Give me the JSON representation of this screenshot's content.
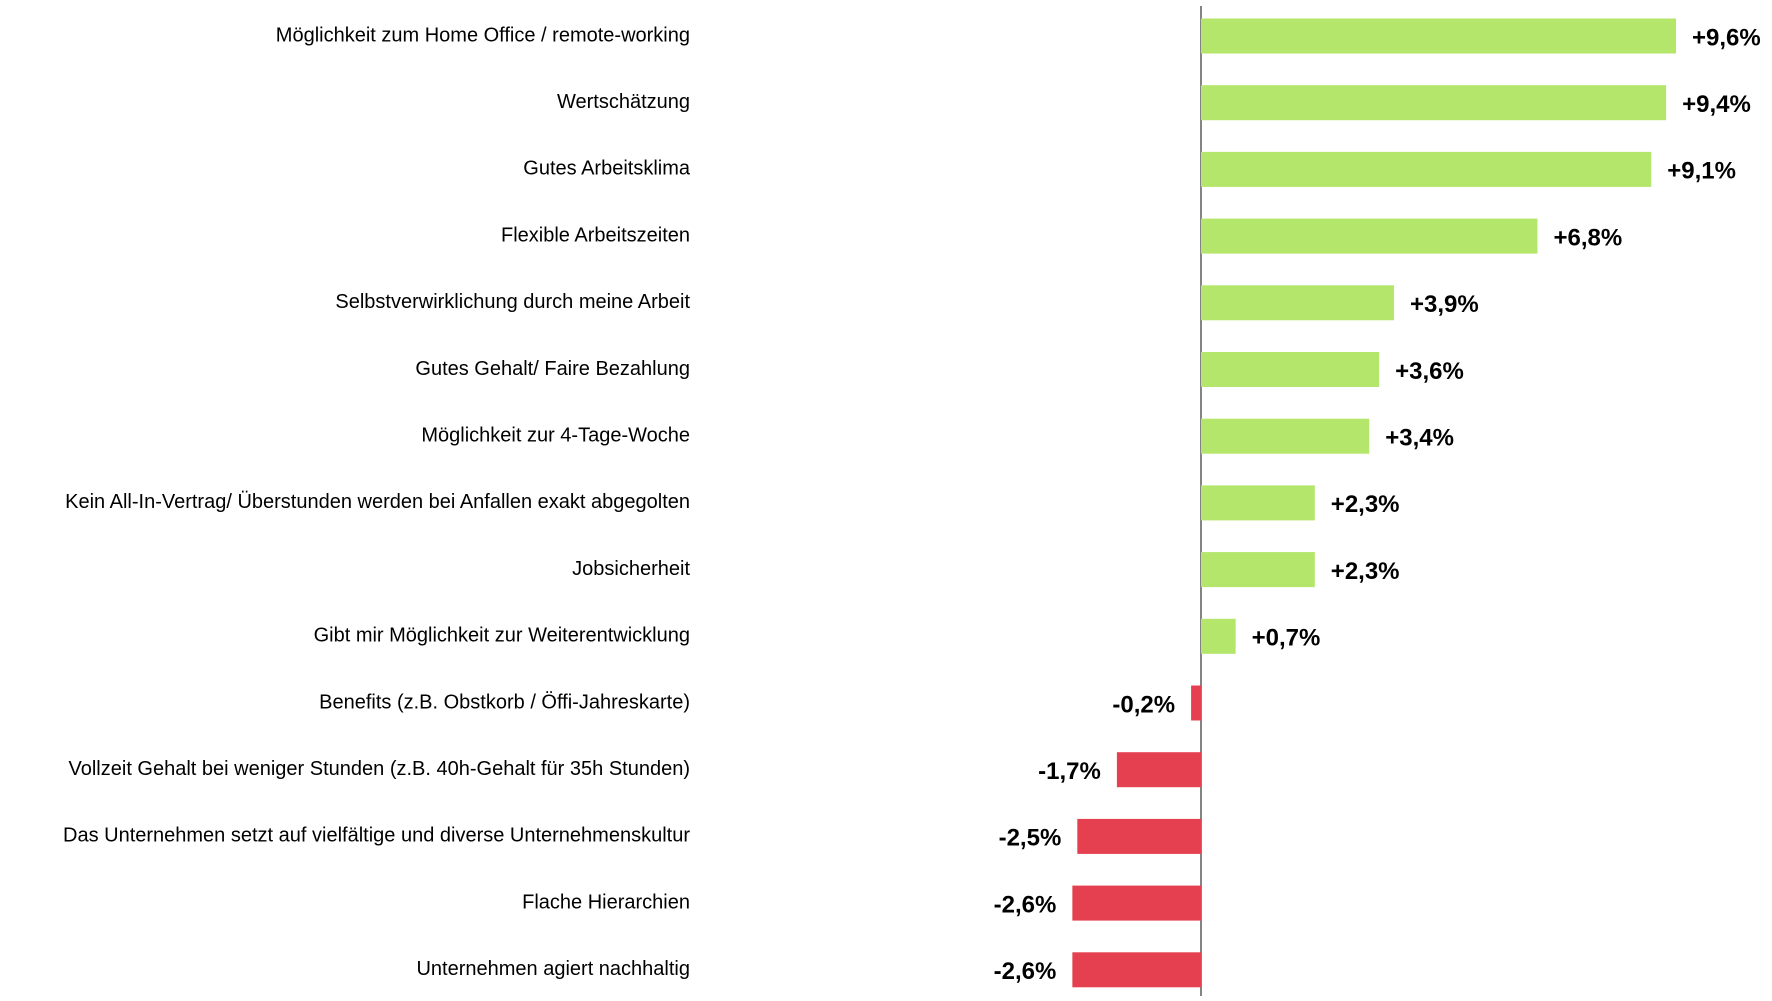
{
  "chart_data": {
    "type": "diverging-bar",
    "categories": [
      "Möglichkeit zum Home Office / remote-working",
      "Wertschätzung",
      "Gutes Arbeitsklima",
      "Flexible Arbeitszeiten",
      "Selbstverwirklichung durch meine Arbeit",
      "Gutes Gehalt/ Faire Bezahlung",
      "Möglichkeit zur 4-Tage-Woche",
      "Kein All-In-Vertrag/ Überstunden werden bei Anfallen exakt abgegolten",
      "Jobsicherheit",
      "Gibt mir Möglichkeit zur Weiterentwicklung",
      "Benefits (z.B. Obstkorb / Öffi-Jahreskarte)",
      "Vollzeit Gehalt bei weniger Stunden (z.B. 40h-Gehalt für 35h Stunden)",
      "Das Unternehmen setzt auf vielfältige und diverse Unternehmenskultur",
      "Flache Hierarchien",
      "Unternehmen agiert nachhaltig"
    ],
    "values": [
      9.6,
      9.4,
      9.1,
      6.8,
      3.9,
      3.6,
      3.4,
      2.3,
      2.3,
      0.7,
      -0.2,
      -1.7,
      -2.5,
      -2.6,
      -2.6
    ],
    "value_labels": [
      "+9,6%",
      "+9,4%",
      "+9,1%",
      "+6,8%",
      "+3,9%",
      "+3,6%",
      "+3,4%",
      "+2,3%",
      "+2,3%",
      "+0,7%",
      "-0,2%",
      "-1,7%",
      "-2,5%",
      "-2,6%",
      "-2,6%"
    ],
    "color": "#b3e66a",
    "negative_color": "#e5404f"
  }
}
